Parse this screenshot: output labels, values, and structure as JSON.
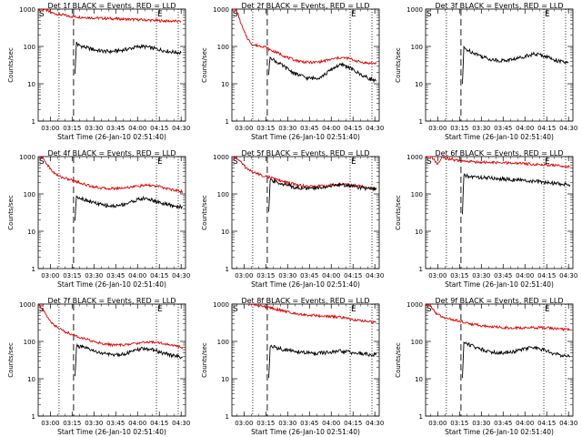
{
  "figure": {
    "xlabel": "Start Time (26-Jan-10 02:51:40)",
    "ylabel": "Counts/sec",
    "x_tick_labels": [
      "03:00",
      "03:15",
      "03:30",
      "03:45",
      "04:00",
      "04:15",
      "04:30"
    ],
    "y_tick_labels": [
      "1",
      "10",
      "100",
      "1000"
    ],
    "marker_s": "S",
    "marker_e": "E",
    "colors": {
      "events": "#000000",
      "lld": "#dd0000",
      "axes": "#000000"
    }
  },
  "chart_data": [
    {
      "type": "line",
      "title": "Det 1f BLACK = Events, RED = LLD",
      "xlim": [
        "02:51:40",
        "04:33"
      ],
      "ylim": [
        1,
        1000
      ],
      "yscale": "log",
      "vlines_dotted": [
        "03:06",
        "04:13",
        "04:28"
      ],
      "vline_dashed": "03:16",
      "series": [
        {
          "name": "Events",
          "color": "#000000",
          "x": [
            "03:17",
            "03:18",
            "03:19",
            "03:22",
            "03:26",
            "03:30",
            "03:34",
            "03:38",
            "03:42",
            "03:46",
            "03:50",
            "03:54",
            "03:58",
            "04:02",
            "04:06",
            "04:10",
            "04:14",
            "04:18",
            "04:22",
            "04:26",
            "04:30"
          ],
          "values": [
            20,
            130,
            110,
            100,
            90,
            82,
            76,
            74,
            73,
            76,
            80,
            86,
            94,
            100,
            97,
            90,
            84,
            78,
            73,
            70,
            68
          ]
        },
        {
          "name": "LLD",
          "color": "#dd0000",
          "x": [
            "02:51:40",
            "02:55",
            "02:57",
            "02:59",
            "03:01",
            "03:03",
            "03:06",
            "03:09",
            "03:12",
            "03:16",
            "03:20",
            "03:25",
            "03:30",
            "03:40",
            "03:50",
            "04:00",
            "04:10",
            "04:20",
            "04:30"
          ],
          "values": [
            1000,
            1000,
            950,
            850,
            800,
            760,
            720,
            700,
            650,
            630,
            610,
            600,
            580,
            560,
            540,
            520,
            500,
            480,
            470
          ]
        }
      ]
    },
    {
      "type": "line",
      "title": "Det 2f BLACK = Events, RED = LLD",
      "xlim": [
        "02:51:40",
        "04:33"
      ],
      "ylim": [
        1,
        1000
      ],
      "yscale": "log",
      "vlines_dotted": [
        "03:06",
        "04:13",
        "04:28"
      ],
      "vline_dashed": "03:16",
      "series": [
        {
          "name": "Events",
          "color": "#000000",
          "x": [
            "03:17",
            "03:18",
            "03:20",
            "03:24",
            "03:28",
            "03:32",
            "03:36",
            "03:40",
            "03:44",
            "03:48",
            "03:52",
            "03:56",
            "04:00",
            "04:04",
            "04:08",
            "04:12",
            "04:16",
            "04:20",
            "04:24",
            "04:28",
            "04:31"
          ],
          "values": [
            18,
            55,
            45,
            35,
            28,
            22,
            18,
            16,
            14,
            14,
            15,
            18,
            24,
            30,
            32,
            28,
            22,
            18,
            15,
            13,
            12
          ]
        },
        {
          "name": "LLD",
          "color": "#dd0000",
          "x": [
            "02:51:40",
            "02:54",
            "02:56",
            "02:58",
            "03:00",
            "03:03",
            "03:06",
            "03:10",
            "03:14",
            "03:18",
            "03:22",
            "03:26",
            "03:30",
            "03:36",
            "03:42",
            "03:48",
            "03:54",
            "04:00",
            "04:06",
            "04:12",
            "04:18",
            "04:24",
            "04:31"
          ],
          "values": [
            1000,
            1000,
            700,
            400,
            250,
            150,
            110,
            105,
            100,
            80,
            70,
            60,
            50,
            42,
            38,
            37,
            40,
            45,
            50,
            48,
            40,
            36,
            35
          ]
        }
      ]
    },
    {
      "type": "line",
      "title": "Det 3f BLACK = Events, RED = LLD",
      "xlim": [
        "02:51:40",
        "04:33"
      ],
      "ylim": [
        1,
        1000
      ],
      "yscale": "log",
      "vlines_dotted": [
        "03:06",
        "04:13",
        "04:28"
      ],
      "vline_dashed": "03:16",
      "series": [
        {
          "name": "Events",
          "color": "#000000",
          "x": [
            "03:17",
            "03:18",
            "03:22",
            "03:26",
            "03:30",
            "03:34",
            "03:38",
            "03:42",
            "03:46",
            "03:50",
            "03:54",
            "03:58",
            "04:02",
            "04:06",
            "04:10",
            "04:14",
            "04:18",
            "04:22",
            "04:26",
            "04:30"
          ],
          "values": [
            10,
            90,
            75,
            65,
            55,
            48,
            44,
            42,
            42,
            44,
            47,
            52,
            58,
            62,
            60,
            55,
            48,
            42,
            38,
            36
          ]
        }
      ]
    },
    {
      "type": "line",
      "title": "Det 4f BLACK = Events, RED = LLD",
      "xlim": [
        "02:51:40",
        "04:33"
      ],
      "ylim": [
        1,
        1000
      ],
      "yscale": "log",
      "vlines_dotted": [
        "03:06",
        "04:13",
        "04:28"
      ],
      "vline_dashed": "03:16",
      "series": [
        {
          "name": "Events",
          "color": "#000000",
          "x": [
            "03:17",
            "03:18",
            "03:20",
            "03:24",
            "03:28",
            "03:32",
            "03:36",
            "03:40",
            "03:44",
            "03:48",
            "03:52",
            "03:56",
            "04:00",
            "04:04",
            "04:08",
            "04:12",
            "04:16",
            "04:20",
            "04:24",
            "04:28",
            "04:31"
          ],
          "values": [
            20,
            90,
            80,
            70,
            62,
            55,
            50,
            48,
            47,
            50,
            55,
            62,
            70,
            75,
            72,
            65,
            58,
            52,
            48,
            46,
            45
          ]
        },
        {
          "name": "LLD",
          "color": "#dd0000",
          "x": [
            "02:51:40",
            "02:55",
            "02:58",
            "03:01",
            "03:04",
            "03:08",
            "03:12",
            "03:16",
            "03:20",
            "03:26",
            "03:32",
            "03:38",
            "03:44",
            "03:50",
            "03:56",
            "04:02",
            "04:08",
            "04:14",
            "04:20",
            "04:26",
            "04:31"
          ],
          "values": [
            1000,
            900,
            600,
            420,
            330,
            280,
            250,
            230,
            200,
            170,
            150,
            140,
            140,
            145,
            155,
            165,
            170,
            160,
            140,
            125,
            115
          ]
        }
      ]
    },
    {
      "type": "line",
      "title": "Det 5f BLACK = Events, RED = LLD",
      "xlim": [
        "02:51:40",
        "04:33"
      ],
      "ylim": [
        1,
        1000
      ],
      "yscale": "log",
      "vlines_dotted": [
        "03:06",
        "04:13",
        "04:28"
      ],
      "vline_dashed": "03:16",
      "series": [
        {
          "name": "Events",
          "color": "#000000",
          "x": [
            "03:17",
            "03:18",
            "03:22",
            "03:26",
            "03:30",
            "03:36",
            "03:42",
            "03:48",
            "03:54",
            "04:00",
            "04:06",
            "04:12",
            "04:18",
            "04:24",
            "04:31"
          ],
          "values": [
            30,
            230,
            210,
            190,
            170,
            150,
            140,
            140,
            150,
            165,
            175,
            170,
            155,
            140,
            130
          ]
        },
        {
          "name": "LLD",
          "color": "#dd0000",
          "x": [
            "02:51:40",
            "02:55",
            "02:58",
            "03:01",
            "03:04",
            "03:08",
            "03:12",
            "03:16",
            "03:20",
            "03:26",
            "03:32",
            "03:38",
            "03:44",
            "03:50",
            "03:56",
            "04:02",
            "04:08",
            "04:14",
            "04:20",
            "04:26",
            "04:31"
          ],
          "values": [
            1000,
            900,
            700,
            520,
            420,
            360,
            320,
            290,
            260,
            220,
            190,
            170,
            160,
            160,
            165,
            175,
            180,
            175,
            160,
            145,
            135
          ]
        }
      ]
    },
    {
      "type": "line",
      "title": "Det 6f BLACK = Events, RED = LLD",
      "xlim": [
        "02:51:40",
        "04:33"
      ],
      "ylim": [
        1,
        1000
      ],
      "yscale": "log",
      "vlines_dotted": [
        "03:06",
        "04:13",
        "04:28"
      ],
      "vline_dashed": "03:16",
      "series": [
        {
          "name": "Events",
          "color": "#000000",
          "x": [
            "03:17",
            "03:18",
            "03:22",
            "03:28",
            "03:34",
            "03:40",
            "03:46",
            "03:52",
            "03:58",
            "04:04",
            "04:10",
            "04:16",
            "04:22",
            "04:28",
            "04:31"
          ],
          "values": [
            30,
            310,
            290,
            280,
            270,
            260,
            250,
            240,
            230,
            220,
            210,
            200,
            190,
            180,
            175
          ]
        },
        {
          "name": "LLD",
          "color": "#dd0000",
          "x": [
            "02:51:40",
            "02:54",
            "02:56",
            "02:58",
            "03:00",
            "03:03",
            "03:06",
            "03:10",
            "03:14",
            "03:20",
            "03:26",
            "03:32",
            "03:38",
            "03:44",
            "03:50",
            "03:56",
            "04:02",
            "04:08",
            "04:14",
            "04:20",
            "04:26",
            "04:31"
          ],
          "values": [
            1000,
            1000,
            950,
            800,
            600,
            1000,
            900,
            820,
            780,
            740,
            720,
            700,
            690,
            680,
            670,
            660,
            640,
            620,
            600,
            580,
            560,
            540
          ]
        }
      ]
    },
    {
      "type": "line",
      "title": "Det 7f BLACK = Events, RED = LLD",
      "xlim": [
        "02:51:40",
        "04:33"
      ],
      "ylim": [
        1,
        1000
      ],
      "yscale": "log",
      "vlines_dotted": [
        "03:06",
        "04:13",
        "04:28"
      ],
      "vline_dashed": "03:16",
      "series": [
        {
          "name": "Events",
          "color": "#000000",
          "x": [
            "03:17",
            "03:18",
            "03:22",
            "03:26",
            "03:30",
            "03:34",
            "03:38",
            "03:42",
            "03:46",
            "03:50",
            "03:54",
            "03:58",
            "04:02",
            "04:06",
            "04:10",
            "04:14",
            "04:18",
            "04:22",
            "04:26",
            "04:31"
          ],
          "values": [
            12,
            75,
            70,
            62,
            55,
            50,
            46,
            44,
            44,
            46,
            50,
            56,
            62,
            64,
            60,
            54,
            48,
            44,
            40,
            38
          ]
        },
        {
          "name": "LLD",
          "color": "#dd0000",
          "x": [
            "02:51:40",
            "02:55",
            "02:58",
            "03:01",
            "03:04",
            "03:08",
            "03:12",
            "03:16",
            "03:20",
            "03:26",
            "03:32",
            "03:38",
            "03:44",
            "03:50",
            "03:56",
            "04:02",
            "04:08",
            "04:14",
            "04:20",
            "04:26",
            "04:31"
          ],
          "values": [
            1000,
            700,
            450,
            320,
            250,
            200,
            170,
            150,
            130,
            110,
            95,
            85,
            80,
            80,
            85,
            92,
            98,
            95,
            85,
            75,
            70
          ]
        }
      ]
    },
    {
      "type": "line",
      "title": "Det 8f BLACK = Events, RED = LLD",
      "xlim": [
        "02:51:40",
        "04:33"
      ],
      "ylim": [
        1,
        1000
      ],
      "yscale": "log",
      "vlines_dotted": [
        "03:06",
        "04:13",
        "04:28"
      ],
      "vline_dashed": "03:16",
      "series": [
        {
          "name": "Events",
          "color": "#000000",
          "x": [
            "03:17",
            "03:18",
            "03:22",
            "03:26",
            "03:30",
            "03:34",
            "03:38",
            "03:42",
            "03:46",
            "03:50",
            "03:54",
            "03:58",
            "04:02",
            "04:06",
            "04:10",
            "04:14",
            "04:18",
            "04:22",
            "04:26",
            "04:31"
          ],
          "values": [
            10,
            75,
            68,
            62,
            58,
            55,
            52,
            50,
            49,
            48,
            49,
            50,
            52,
            54,
            53,
            50,
            48,
            46,
            45,
            44
          ]
        },
        {
          "name": "LLD",
          "color": "#dd0000",
          "x": [
            "03:03",
            "03:06",
            "03:10",
            "03:14",
            "03:18",
            "03:24",
            "03:30",
            "03:36",
            "03:42",
            "03:48",
            "03:54",
            "04:00",
            "04:06",
            "04:10",
            "04:12",
            "04:16",
            "04:20",
            "04:26",
            "04:31"
          ],
          "values": [
            1000,
            1000,
            900,
            850,
            800,
            700,
            620,
            560,
            520,
            500,
            480,
            460,
            440,
            420,
            400,
            380,
            360,
            340,
            320
          ]
        }
      ]
    },
    {
      "type": "line",
      "title": "Det 9f BLACK = Events, RED = LLD",
      "xlim": [
        "02:51:40",
        "04:33"
      ],
      "ylim": [
        1,
        1000
      ],
      "yscale": "log",
      "vlines_dotted": [
        "03:06",
        "04:13",
        "04:28"
      ],
      "vline_dashed": "03:16",
      "series": [
        {
          "name": "Events",
          "color": "#000000",
          "x": [
            "03:17",
            "03:18",
            "03:22",
            "03:26",
            "03:30",
            "03:34",
            "03:38",
            "03:42",
            "03:46",
            "03:50",
            "03:54",
            "03:58",
            "04:02",
            "04:06",
            "04:10",
            "04:14",
            "04:18",
            "04:22",
            "04:26",
            "04:31"
          ],
          "values": [
            10,
            95,
            82,
            70,
            62,
            56,
            52,
            50,
            50,
            52,
            55,
            60,
            66,
            68,
            64,
            57,
            50,
            45,
            42,
            40
          ]
        },
        {
          "name": "LLD",
          "color": "#dd0000",
          "x": [
            "02:51:40",
            "02:54",
            "02:56",
            "02:58",
            "03:01",
            "03:04",
            "03:08",
            "03:12",
            "03:16",
            "03:20",
            "03:26",
            "03:32",
            "03:38",
            "03:44",
            "03:50",
            "03:56",
            "04:02",
            "04:08",
            "04:14",
            "04:20",
            "04:26",
            "04:31"
          ],
          "values": [
            1000,
            1000,
            800,
            600,
            500,
            440,
            400,
            370,
            340,
            310,
            280,
            260,
            245,
            235,
            230,
            230,
            232,
            235,
            232,
            222,
            212,
            205
          ]
        }
      ]
    }
  ]
}
